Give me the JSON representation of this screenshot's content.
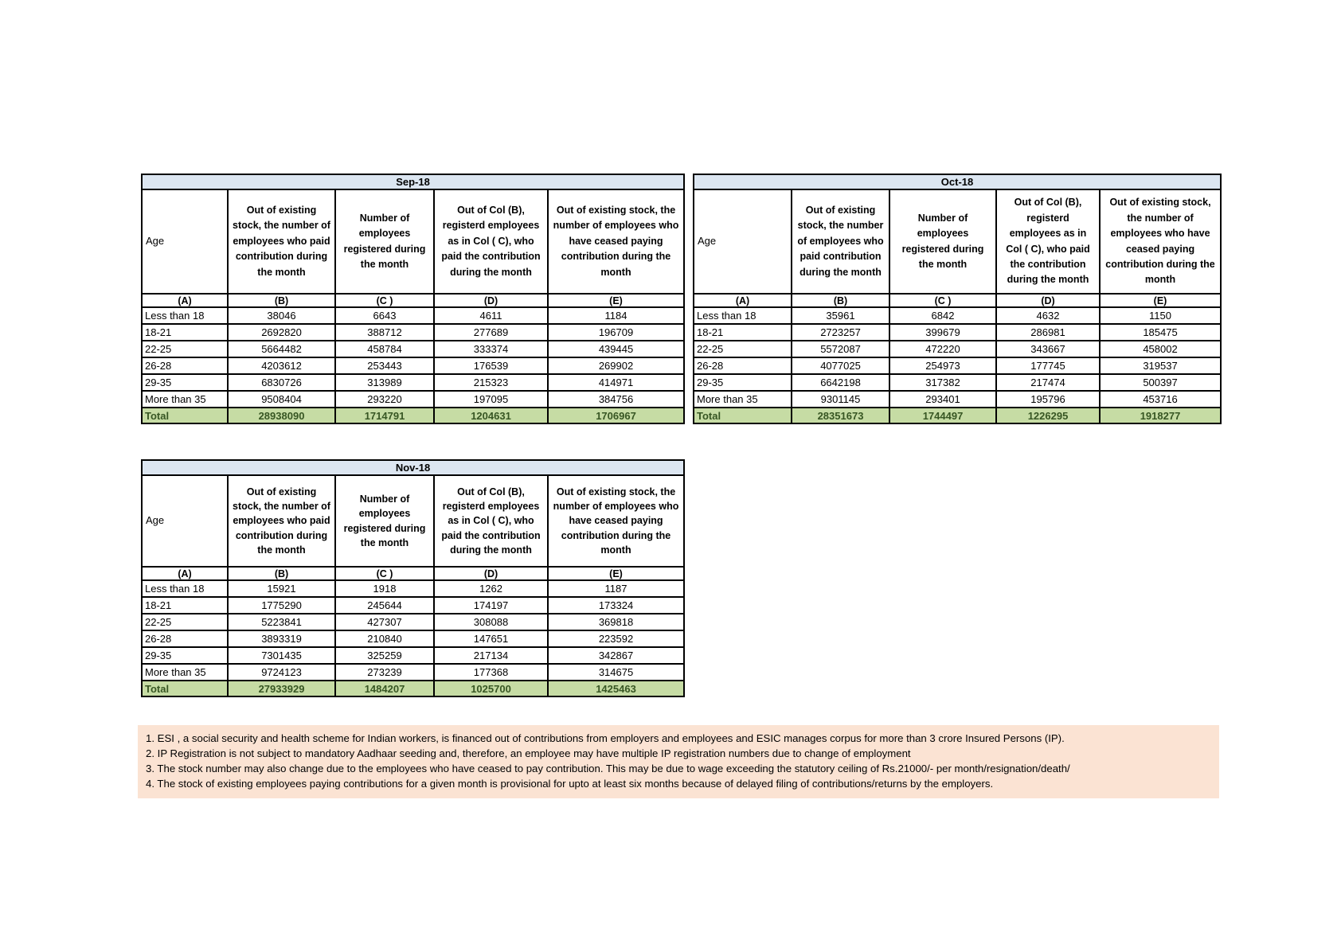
{
  "colors": {
    "month_header_bg": "#dce6f1",
    "total_row_bg": "#c6dca4",
    "total_row_text": "#375623",
    "notes_bg": "#fbe3d3",
    "table_border": "#000000"
  },
  "headers": {
    "age": "Age",
    "col_b": "Out of existing stock, the number of employees who paid contribution during the month",
    "col_c": "Number of employees registered during the month",
    "col_d": "Out of Col (B), registerd employees as in Col ( C), who paid the contribution during the month",
    "col_e": "Out of existing stock, the number of  employees  who have ceased paying contribution during the month"
  },
  "letters": [
    "(A)",
    "(B)",
    "(C )",
    "(D)",
    "(E)"
  ],
  "tables": [
    {
      "month": "Sep-18",
      "rows": [
        {
          "age": "Less than 18",
          "values": [
            "38046",
            "6643",
            "4611",
            "1184"
          ]
        },
        {
          "age": "18-21",
          "values": [
            "2692820",
            "388712",
            "277689",
            "196709"
          ]
        },
        {
          "age": "22-25",
          "values": [
            "5664482",
            "458784",
            "333374",
            "439445"
          ]
        },
        {
          "age": "26-28",
          "values": [
            "4203612",
            "253443",
            "176539",
            "269902"
          ]
        },
        {
          "age": "29-35",
          "values": [
            "6830726",
            "313989",
            "215323",
            "414971"
          ]
        },
        {
          "age": "More than 35",
          "values": [
            "9508404",
            "293220",
            "197095",
            "384756"
          ]
        }
      ],
      "total": {
        "label": "Total",
        "values": [
          "28938090",
          "1714791",
          "1204631",
          "1706967"
        ]
      }
    },
    {
      "month": "Oct-18",
      "rows": [
        {
          "age": "Less than 18",
          "values": [
            "35961",
            "6842",
            "4632",
            "1150"
          ]
        },
        {
          "age": "18-21",
          "values": [
            "2723257",
            "399679",
            "286981",
            "185475"
          ]
        },
        {
          "age": "22-25",
          "values": [
            "5572087",
            "472220",
            "343667",
            "458002"
          ]
        },
        {
          "age": "26-28",
          "values": [
            "4077025",
            "254973",
            "177745",
            "319537"
          ]
        },
        {
          "age": "29-35",
          "values": [
            "6642198",
            "317382",
            "217474",
            "500397"
          ]
        },
        {
          "age": "More than 35",
          "values": [
            "9301145",
            "293401",
            "195796",
            "453716"
          ]
        }
      ],
      "total": {
        "label": "Total",
        "values": [
          "28351673",
          "1744497",
          "1226295",
          "1918277"
        ]
      }
    },
    {
      "month": "Nov-18",
      "rows": [
        {
          "age": "Less than 18",
          "values": [
            "15921",
            "1918",
            "1262",
            "1187"
          ]
        },
        {
          "age": "18-21",
          "values": [
            "1775290",
            "245644",
            "174197",
            "173324"
          ]
        },
        {
          "age": "22-25",
          "values": [
            "5223841",
            "427307",
            "308088",
            "369818"
          ]
        },
        {
          "age": "26-28",
          "values": [
            "3893319",
            "210840",
            "147651",
            "223592"
          ]
        },
        {
          "age": "29-35",
          "values": [
            "7301435",
            "325259",
            "217134",
            "342867"
          ]
        },
        {
          "age": "More than 35",
          "values": [
            "9724123",
            "273239",
            "177368",
            "314675"
          ]
        }
      ],
      "total": {
        "label": "Total",
        "values": [
          "27933929",
          "1484207",
          "1025700",
          "1425463"
        ]
      }
    }
  ],
  "notes": [
    "1. ESI , a social security and health scheme for Indian workers, is financed out of contributions from employers and employees and ESIC manages corpus for more than 3 crore Insured Persons (IP).",
    "2. IP Registration is not subject to mandatory Aadhaar seeding and, therefore, an employee may have multiple IP registration numbers due to change of employment",
    "3. The stock number may also change due to the employees who have ceased to pay contribution. This may  be due to wage exceeding the statutory ceiling of  Rs.21000/- per month/resignation/death/",
    "4. The stock of existing employees paying contributions for a given month is provisional for upto at least six months because of delayed filing of contributions/returns by the employers."
  ]
}
